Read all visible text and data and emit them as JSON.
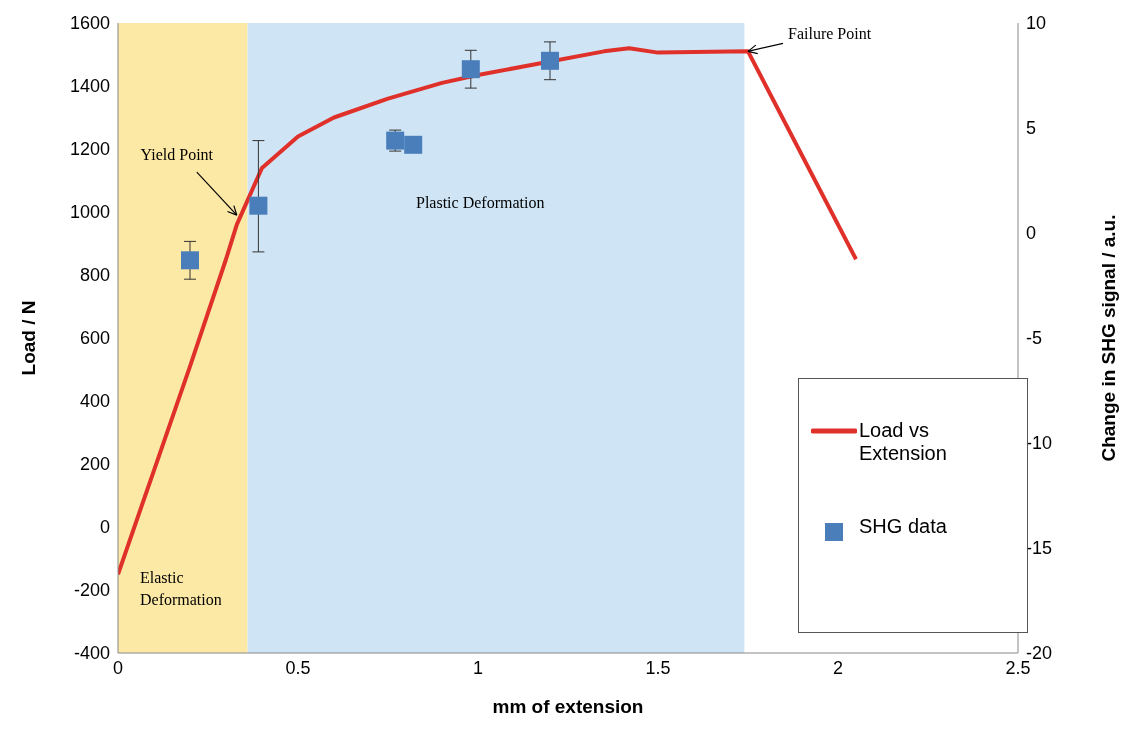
{
  "chart_data": {
    "type": "line",
    "xlabel": "mm of extension",
    "ylabel": "Load / N",
    "y2label": "Change in SHG signal / a.u.",
    "xlim": [
      0,
      2.5
    ],
    "xticks": [
      0,
      0.5,
      1,
      1.5,
      2,
      2.5
    ],
    "ylim": [
      -400,
      1600
    ],
    "yticks": [
      -400,
      -200,
      0,
      200,
      400,
      600,
      800,
      1000,
      1200,
      1400,
      1600
    ],
    "y2lim": [
      -20,
      10
    ],
    "y2ticks": [
      -20,
      -15,
      -10,
      -5,
      0,
      5,
      10
    ],
    "grid": false,
    "legend": "bottom right",
    "series": [
      {
        "name": "Load vs Extension",
        "color": "#e0302a",
        "marker": "none",
        "line_style": "solid",
        "x": [
          0,
          0.1,
          0.2,
          0.3,
          0.33,
          0.4,
          0.5,
          0.6,
          0.75,
          0.9,
          1,
          1.35,
          1.42,
          1.5,
          1.75,
          2.05
        ],
        "values": [
          -150,
          180,
          510,
          850,
          960,
          1140,
          1240,
          1300,
          1360,
          1410,
          1435,
          1510,
          1520,
          1506,
          1510,
          850
        ]
      },
      {
        "name": "SHG data",
        "type": "scatter",
        "axis": "y2",
        "color": "#4a7ebb",
        "marker": "square",
        "x": [
          0.2,
          0.39,
          0.77,
          0.82,
          0.98,
          1.2
        ],
        "values": [
          -1.3,
          1.3,
          4.4,
          4.2,
          7.8,
          8.2
        ],
        "errors": [
          0.9,
          [
            -0.9,
            4.4
          ],
          0.5,
          null,
          0.9,
          0.9
        ]
      }
    ],
    "bands": [
      {
        "axis": "x",
        "from": 0,
        "to": 0.36,
        "label": "Elastic Deformation",
        "color": "#fde9a6"
      },
      {
        "axis": "x",
        "from": 0.36,
        "to": 1.74,
        "label": "Plastic Deformation",
        "color": "#cfe5f5"
      }
    ],
    "annotations": [
      {
        "text": "Yield Point",
        "x": 0.33,
        "y": 990
      },
      {
        "text": "Failure Point",
        "x": 1.75,
        "y": 1510
      }
    ]
  }
}
